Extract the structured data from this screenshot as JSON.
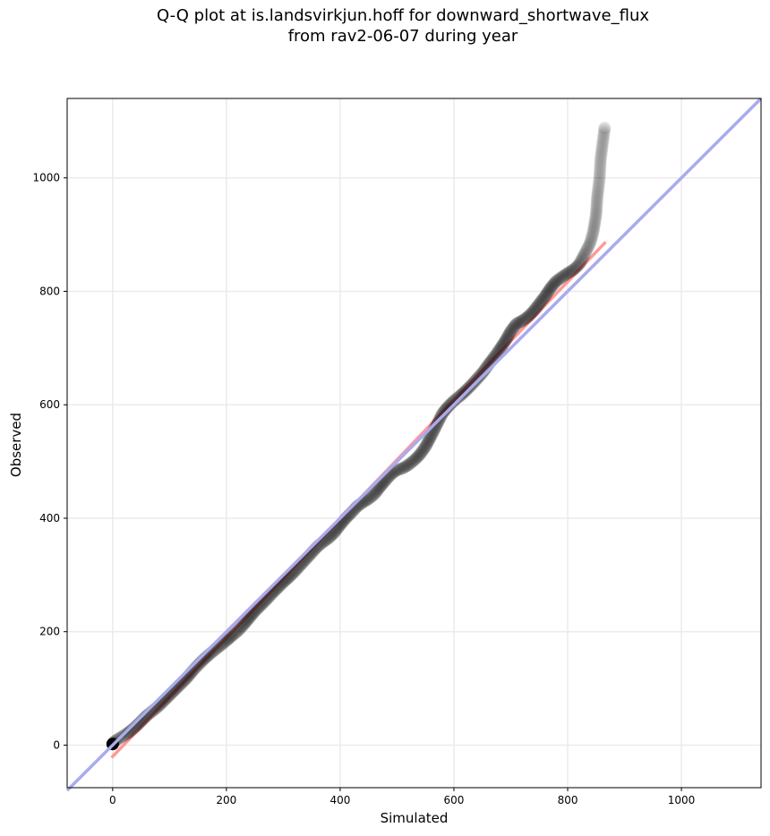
{
  "title_lines": [
    "Q-Q plot at is.landsvirkjun.hoff for downward_shortwave_flux",
    "from rav2-06-07 during year"
  ],
  "chart_data": {
    "type": "scatter",
    "xlabel": "Simulated",
    "ylabel": "Observed",
    "xlim": [
      -80,
      1140
    ],
    "ylim": [
      -75,
      1140
    ],
    "xticks": [
      0,
      200,
      400,
      600,
      800,
      1000
    ],
    "yticks": [
      0,
      200,
      400,
      600,
      800,
      1000
    ],
    "grid": true,
    "colors": {
      "points": "#000000",
      "identity_line": "#aaaaee",
      "fit_line": "#ff9999"
    },
    "identity_line": {
      "from": [
        -80,
        -80
      ],
      "to": [
        1140,
        1140
      ]
    },
    "fit_line": {
      "from": [
        0,
        -20
      ],
      "to": [
        865,
        885
      ]
    },
    "quantiles": [
      [
        0,
        2
      ],
      [
        2,
        5
      ],
      [
        5,
        8
      ],
      [
        10,
        11
      ],
      [
        15,
        14
      ],
      [
        20,
        17
      ],
      [
        25,
        20
      ],
      [
        30,
        24
      ],
      [
        40,
        32
      ],
      [
        50,
        42
      ],
      [
        60,
        52
      ],
      [
        70,
        60
      ],
      [
        80,
        68
      ],
      [
        90,
        78
      ],
      [
        100,
        88
      ],
      [
        110,
        98
      ],
      [
        120,
        108
      ],
      [
        130,
        118
      ],
      [
        140,
        130
      ],
      [
        150,
        141
      ],
      [
        160,
        151
      ],
      [
        170,
        160
      ],
      [
        180,
        168
      ],
      [
        190,
        176
      ],
      [
        200,
        184
      ],
      [
        210,
        193
      ],
      [
        220,
        201
      ],
      [
        230,
        212
      ],
      [
        240,
        224
      ],
      [
        250,
        236
      ],
      [
        260,
        246
      ],
      [
        270,
        256
      ],
      [
        280,
        267
      ],
      [
        290,
        277
      ],
      [
        300,
        287
      ],
      [
        310,
        296
      ],
      [
        320,
        306
      ],
      [
        330,
        317
      ],
      [
        340,
        328
      ],
      [
        350,
        339
      ],
      [
        360,
        350
      ],
      [
        370,
        358
      ],
      [
        380,
        365
      ],
      [
        390,
        375
      ],
      [
        400,
        388
      ],
      [
        410,
        400
      ],
      [
        420,
        410
      ],
      [
        430,
        421
      ],
      [
        440,
        428
      ],
      [
        450,
        434
      ],
      [
        460,
        442
      ],
      [
        470,
        455
      ],
      [
        480,
        467
      ],
      [
        490,
        478
      ],
      [
        500,
        485
      ],
      [
        510,
        488
      ],
      [
        520,
        494
      ],
      [
        530,
        502
      ],
      [
        540,
        512
      ],
      [
        550,
        526
      ],
      [
        560,
        545
      ],
      [
        570,
        565
      ],
      [
        580,
        585
      ],
      [
        590,
        597
      ],
      [
        600,
        607
      ],
      [
        610,
        615
      ],
      [
        620,
        624
      ],
      [
        630,
        634
      ],
      [
        640,
        645
      ],
      [
        650,
        656
      ],
      [
        660,
        670
      ],
      [
        670,
        683
      ],
      [
        680,
        697
      ],
      [
        690,
        712
      ],
      [
        700,
        730
      ],
      [
        710,
        743
      ],
      [
        720,
        748
      ],
      [
        730,
        755
      ],
      [
        740,
        765
      ],
      [
        750,
        778
      ],
      [
        760,
        791
      ],
      [
        770,
        806
      ],
      [
        780,
        818
      ],
      [
        790,
        825
      ],
      [
        800,
        832
      ],
      [
        810,
        838
      ],
      [
        820,
        847
      ],
      [
        830,
        866
      ],
      [
        840,
        886
      ],
      [
        845,
        905
      ],
      [
        850,
        935
      ],
      [
        852,
        965
      ],
      [
        856,
        1000
      ],
      [
        858,
        1034
      ],
      [
        865,
        1088
      ]
    ]
  }
}
